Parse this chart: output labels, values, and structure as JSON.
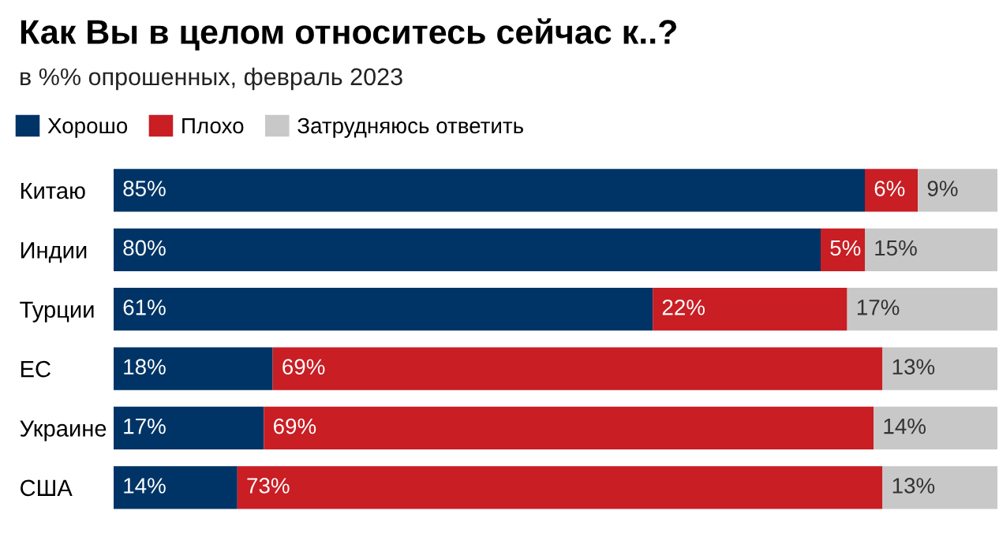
{
  "chart_data": {
    "type": "bar",
    "orientation": "horizontal",
    "stacked": true,
    "title": "Как Вы в целом относитесь сейчас к..?",
    "subtitle": "в %% опрошенных, февраль 2023",
    "categories": [
      "Китаю",
      "Индии",
      "Турции",
      "ЕС",
      "Украине",
      "США"
    ],
    "series": [
      {
        "name": "Хорошо",
        "color": "#003466",
        "values": [
          85,
          80,
          61,
          18,
          17,
          14
        ],
        "value_labels": [
          "85%",
          "80%",
          "61%",
          "18%",
          "17%",
          "14%"
        ]
      },
      {
        "name": "Плохо",
        "color": "#c81e24",
        "values": [
          6,
          5,
          22,
          69,
          69,
          73
        ],
        "value_labels": [
          "6%",
          "5%",
          "22%",
          "69%",
          "69%",
          "73%"
        ]
      },
      {
        "name": "Затрудняюсь ответить",
        "color": "#c8c8c8",
        "values": [
          9,
          15,
          17,
          13,
          14,
          13
        ],
        "value_labels": [
          "9%",
          "15%",
          "17%",
          "13%",
          "14%",
          "13%"
        ]
      }
    ],
    "xlim": [
      0,
      100
    ],
    "tick_labels": "y",
    "grid": false,
    "legend": "top left"
  }
}
